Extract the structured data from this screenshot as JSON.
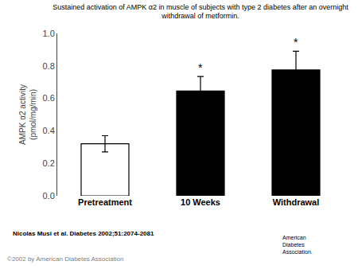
{
  "chart_data": {
    "type": "bar",
    "title": "Sustained activation of AMPK α2 in muscle of subjects with type 2 diabetes after an overnight\nwithdrawal of metformin.",
    "ylabel": "AMPK α2 activity\n(pmol/mg/min)",
    "categories": [
      "Pretreatment",
      "10 Weeks",
      "Withdrawal"
    ],
    "values": [
      0.32,
      0.645,
      0.775
    ],
    "errors": [
      0.05,
      0.09,
      0.115
    ],
    "colors": [
      "white",
      "black",
      "black"
    ],
    "ylim": [
      0.0,
      1.0
    ],
    "yticks": [
      {
        "value": 0.0,
        "label": "0.0"
      },
      0.2,
      0.4,
      0.6,
      0.8,
      {
        "value": 1.0,
        "label": "1.0"
      }
    ],
    "grid": false,
    "annotations": [
      {
        "text": "*",
        "x": "10 Weeks"
      },
      {
        "text": "*",
        "x": "Withdrawal"
      },
      {
        "text": "Nicolas Musi et al. Diabetes 2002;51:2074-2081"
      },
      {
        "text": "©2002 by American Diabetes Association"
      },
      {
        "text": "American\nDiabetes\nAssociation."
      }
    ]
  }
}
